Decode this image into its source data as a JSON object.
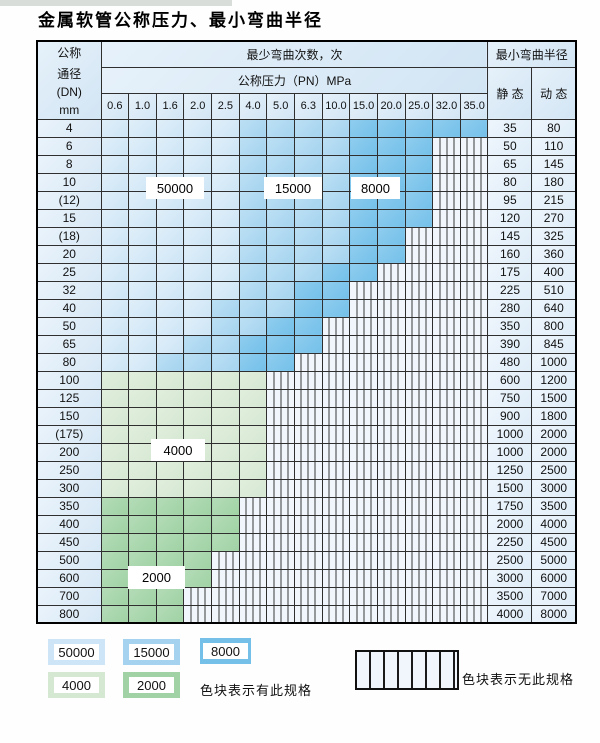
{
  "title": "金属软管公称压力、最小弯曲半径",
  "table": {
    "header": {
      "dn_lines": [
        "公称",
        "通径",
        "(DN)",
        "mm"
      ],
      "bend_cycles": "最少弯曲次数，次",
      "pressure": "公称压力（PN）MPa",
      "bend_radius": "最小弯曲半径",
      "static": "静 态",
      "dynamic": "动 态",
      "pressure_columns": [
        "0.6",
        "1.0",
        "1.6",
        "2.0",
        "2.5",
        "4.0",
        "5.0",
        "6.3",
        "10.0",
        "15.0",
        "20.0",
        "25.0",
        "32.0",
        "35.0"
      ]
    },
    "zone_key": {
      "L": "50000次区",
      "M": "15000次区",
      "D": "8000次区",
      "G": "4000次区",
      "H": "2000次区",
      "S": "无此规格"
    },
    "rows": [
      {
        "dn": "4",
        "zones": "LLLLLMMMMDDDDD",
        "static": "35",
        "dynamic": "80"
      },
      {
        "dn": "6",
        "zones": "LLLLLMMMMDDDSS",
        "static": "50",
        "dynamic": "110"
      },
      {
        "dn": "8",
        "zones": "LLLLLMMMMDDDSS",
        "static": "65",
        "dynamic": "145"
      },
      {
        "dn": "10",
        "zones": "LLLLLMMMMDDDSS",
        "static": "80",
        "dynamic": "180"
      },
      {
        "dn": "(12)",
        "zones": "LLLLLMMMMDDDSS",
        "static": "95",
        "dynamic": "215"
      },
      {
        "dn": "15",
        "zones": "LLLLLMMMMDDDSS",
        "static": "120",
        "dynamic": "270"
      },
      {
        "dn": "(18)",
        "zones": "LLLLLMMMMDDSSS",
        "static": "145",
        "dynamic": "325"
      },
      {
        "dn": "20",
        "zones": "LLLLLMMMMDDSSS",
        "static": "160",
        "dynamic": "360"
      },
      {
        "dn": "25",
        "zones": "LLLLLMMMDDSSSS",
        "static": "175",
        "dynamic": "400"
      },
      {
        "dn": "32",
        "zones": "LLLLLMMDDSSSSS",
        "static": "225",
        "dynamic": "510"
      },
      {
        "dn": "40",
        "zones": "LLLLMMMDDSSSSS",
        "static": "280",
        "dynamic": "640"
      },
      {
        "dn": "50",
        "zones": "LLLLMMDDSSSSSS",
        "static": "350",
        "dynamic": "800"
      },
      {
        "dn": "65",
        "zones": "LLLMMDDDSSSSSS",
        "static": "390",
        "dynamic": "845"
      },
      {
        "dn": "80",
        "zones": "LLMMMDDSSSSSSS",
        "static": "480",
        "dynamic": "1000"
      },
      {
        "dn": "100",
        "zones": "GGGGGGSSSSSSSS",
        "static": "600",
        "dynamic": "1200"
      },
      {
        "dn": "125",
        "zones": "GGGGGGSSSSSSSS",
        "static": "750",
        "dynamic": "1500"
      },
      {
        "dn": "150",
        "zones": "GGGGGGSSSSSSSS",
        "static": "900",
        "dynamic": "1800"
      },
      {
        "dn": "(175)",
        "zones": "GGGGGGSSSSSSSS",
        "static": "1000",
        "dynamic": "2000"
      },
      {
        "dn": "200",
        "zones": "GGGGGGSSSSSSSS",
        "static": "1000",
        "dynamic": "2000"
      },
      {
        "dn": "250",
        "zones": "GGGGGGSSSSSSSS",
        "static": "1250",
        "dynamic": "2500"
      },
      {
        "dn": "300",
        "zones": "GGGGGGSSSSSSSS",
        "static": "1500",
        "dynamic": "3000"
      },
      {
        "dn": "350",
        "zones": "HHHHHSSSSSSSSS",
        "static": "1750",
        "dynamic": "3500"
      },
      {
        "dn": "400",
        "zones": "HHHHHSSSSSSSSS",
        "static": "2000",
        "dynamic": "4000"
      },
      {
        "dn": "450",
        "zones": "HHHHHSSSSSSSSS",
        "static": "2250",
        "dynamic": "4500"
      },
      {
        "dn": "500",
        "zones": "HHHHSSSSSSSSSS",
        "static": "2500",
        "dynamic": "5000"
      },
      {
        "dn": "600",
        "zones": "HHHHSSSSSSSSSS",
        "static": "3000",
        "dynamic": "6000"
      },
      {
        "dn": "700",
        "zones": "HHHSSSSSSSSSSS",
        "static": "3500",
        "dynamic": "7000"
      },
      {
        "dn": "800",
        "zones": "HHHSSSSSSSSSSS",
        "static": "4000",
        "dynamic": "8000"
      }
    ]
  },
  "overlay_labels": [
    {
      "text": "50000"
    },
    {
      "text": "15000"
    },
    {
      "text": "8000"
    },
    {
      "text": "4000"
    },
    {
      "text": "2000"
    }
  ],
  "legend": {
    "items": [
      {
        "value": "50000"
      },
      {
        "value": "15000"
      },
      {
        "value": "8000"
      },
      {
        "value": "4000"
      },
      {
        "value": "2000"
      }
    ],
    "available_text": "色块表示有此规格",
    "unavailable_text": "色块表示无此规格"
  },
  "colors": {
    "c50000": "#cde5f6",
    "c15000": "#a5d3ef",
    "c8000": "#74c0e9",
    "c4000": "#d5e8d2",
    "c2000": "#a0d2a5",
    "stripe_bg": "#f0f6fc",
    "header_bg": "#dcebf7"
  }
}
